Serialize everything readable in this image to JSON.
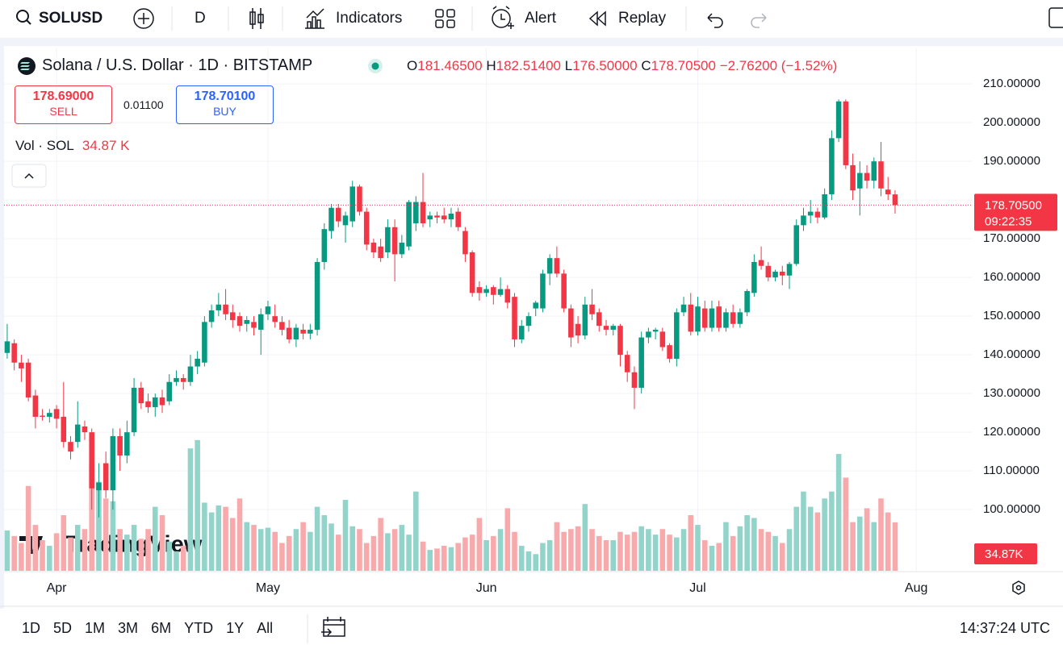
{
  "toolbar": {
    "symbol": "SOLUSD",
    "interval": "D",
    "indicators": "Indicators",
    "alert": "Alert",
    "replay": "Replay"
  },
  "legend": {
    "title": "Solana / U.S. Dollar · 1D · BITSTAMP",
    "o": "O",
    "o_value": "181.46500",
    "h": "H",
    "h_value": "182.51400",
    "l": "L",
    "l_value": "176.50000",
    "c": "C",
    "c_value": "178.70500",
    "change": "−2.76200 (−1.52%)",
    "volume_title": "Vol · SOL",
    "volume_value": "34.87 K"
  },
  "trade": {
    "sell_price": "178.69000",
    "sell": "SELL",
    "spread": "0.01100",
    "buy_price": "178.70100",
    "buy": "BUY"
  },
  "watermark": "TradingView",
  "bottom_bar": {
    "ranges": [
      "1D",
      "5D",
      "1M",
      "3M",
      "6M",
      "YTD",
      "1Y",
      "All"
    ],
    "clock": "14:37:24 UTC"
  },
  "chart_data": {
    "type": "candlestick",
    "up_color": "#089981",
    "down_color": "#f23645",
    "volume_up_color": "#92d3ca",
    "volume_down_color": "#f8a9ac",
    "xlim": [
      -0.45,
      137.0
    ],
    "xticks": [
      {
        "value": 7,
        "label": "Apr"
      },
      {
        "value": 37,
        "label": "May"
      },
      {
        "value": 68,
        "label": "Jun"
      },
      {
        "value": 98,
        "label": "Jul"
      },
      {
        "value": 129,
        "label": "Aug"
      }
    ],
    "ylim": [
      84.2,
      219.2
    ],
    "yticks": [
      {
        "value": 100,
        "label": "100.00000"
      },
      {
        "value": 110,
        "label": "110.00000"
      },
      {
        "value": 120,
        "label": "120.00000"
      },
      {
        "value": 130,
        "label": "130.00000"
      },
      {
        "value": 140,
        "label": "140.00000"
      },
      {
        "value": 150,
        "label": "150.00000"
      },
      {
        "value": 160,
        "label": "160.00000"
      },
      {
        "value": 170,
        "label": "170.00000"
      },
      {
        "value": 180,
        "label": "180.00000"
      },
      {
        "value": 190,
        "label": "190.00000"
      },
      {
        "value": 200,
        "label": "200.00000"
      },
      {
        "value": 210,
        "label": "210.00000"
      }
    ],
    "grid": true,
    "price_label": "178.70500",
    "countdown": "09:22:35",
    "volume_label": "34.87K",
    "volume_ylim": [
      0,
      200
    ],
    "ohlc": [
      [
        140.5,
        148,
        139,
        143.5
      ],
      [
        143,
        144,
        136,
        138
      ],
      [
        138,
        140,
        133,
        136.5
      ],
      [
        138,
        139,
        128,
        129
      ],
      [
        129.5,
        131,
        121,
        124
      ],
      [
        124.3,
        126,
        123,
        124
      ],
      [
        124,
        126,
        122.5,
        125
      ],
      [
        126,
        127,
        121,
        123.5
      ],
      [
        124,
        133,
        116,
        117.5
      ],
      [
        117.5,
        119,
        113,
        115
      ],
      [
        117.5,
        128,
        116,
        122
      ],
      [
        121.5,
        123,
        118,
        120
      ],
      [
        120,
        121,
        100,
        105.5
      ],
      [
        105,
        112,
        98,
        107
      ],
      [
        112,
        115,
        103,
        105
      ],
      [
        105,
        121,
        100,
        119
      ],
      [
        119,
        121,
        110,
        114
      ],
      [
        114,
        123,
        112,
        120
      ],
      [
        120,
        134,
        119,
        131.5
      ],
      [
        131.5,
        133,
        126,
        127.5
      ],
      [
        128,
        130,
        125,
        126.5
      ],
      [
        126.5,
        130,
        124,
        129
      ],
      [
        129,
        131,
        125,
        127
      ],
      [
        128,
        135,
        127,
        133
      ],
      [
        133,
        136,
        132,
        134
      ],
      [
        134,
        135,
        131,
        133
      ],
      [
        133,
        140,
        132,
        137
      ],
      [
        137,
        141,
        135,
        139
      ],
      [
        138,
        150,
        137,
        148.5
      ],
      [
        148.5,
        153,
        147,
        151.5
      ],
      [
        151.5,
        156,
        150,
        153
      ],
      [
        153,
        157,
        149,
        150.5
      ],
      [
        151,
        153,
        147,
        149
      ],
      [
        150,
        151,
        146,
        147.5
      ],
      [
        148,
        150,
        146,
        149
      ],
      [
        148.5,
        150,
        145,
        147
      ],
      [
        146.5,
        152,
        140,
        150.5
      ],
      [
        150.5,
        154,
        149,
        152.5
      ],
      [
        150,
        153,
        147,
        148.5
      ],
      [
        148.5,
        150,
        145,
        146.5
      ],
      [
        147,
        149,
        143,
        144
      ],
      [
        144,
        148,
        142,
        147
      ],
      [
        146.5,
        148,
        144,
        145.5
      ],
      [
        145.5,
        148,
        144,
        146.5
      ],
      [
        146.5,
        165,
        145,
        164
      ],
      [
        164,
        174,
        162,
        172.5
      ],
      [
        172,
        179,
        170,
        178
      ],
      [
        178,
        179,
        173,
        174.5
      ],
      [
        173.5,
        177,
        169,
        176
      ],
      [
        174.5,
        185,
        173,
        183.5
      ],
      [
        183.5,
        184,
        176,
        177
      ],
      [
        177,
        178,
        167,
        168.5
      ],
      [
        169,
        170,
        165,
        166.5
      ],
      [
        168,
        170,
        164,
        165
      ],
      [
        166.5,
        175,
        165,
        173
      ],
      [
        173,
        175,
        159,
        166
      ],
      [
        166,
        171,
        165,
        169
      ],
      [
        168,
        180,
        167,
        179.5
      ],
      [
        174,
        181,
        172,
        179.5
      ],
      [
        179.5,
        187,
        173,
        174
      ],
      [
        175,
        177,
        173,
        176
      ],
      [
        176,
        177,
        174,
        175.5
      ],
      [
        176,
        178,
        174,
        175
      ],
      [
        175,
        178,
        173,
        176.5
      ],
      [
        177,
        178,
        172,
        173
      ],
      [
        172,
        173,
        164,
        166
      ],
      [
        166.5,
        167,
        155,
        156
      ],
      [
        157.5,
        159,
        154,
        156
      ],
      [
        156,
        158,
        155,
        157
      ],
      [
        157.5,
        158,
        153,
        155.5
      ],
      [
        155.5,
        160,
        155,
        157
      ],
      [
        157,
        158,
        152,
        153.5
      ],
      [
        155,
        156,
        142,
        144
      ],
      [
        144,
        149,
        143,
        147.5
      ],
      [
        147.5,
        151,
        146,
        150
      ],
      [
        152,
        154,
        150,
        153.5
      ],
      [
        152,
        162,
        151,
        161
      ],
      [
        161,
        166,
        158,
        165
      ],
      [
        165,
        168,
        160,
        161
      ],
      [
        161,
        162,
        151,
        152
      ],
      [
        152,
        153,
        142,
        144.5
      ],
      [
        148,
        150,
        143,
        145
      ],
      [
        145,
        155,
        144,
        153
      ],
      [
        153,
        157,
        149,
        150.5
      ],
      [
        151,
        152,
        146,
        147.5
      ],
      [
        147.5,
        149,
        145,
        146.5
      ],
      [
        146.5,
        148,
        145,
        147.5
      ],
      [
        147.5,
        148,
        137,
        140
      ],
      [
        140,
        141,
        133,
        135.5
      ],
      [
        135.5,
        137,
        126,
        131.5
      ],
      [
        131.5,
        146,
        130,
        144.5
      ],
      [
        144.5,
        147,
        143,
        146
      ],
      [
        146,
        147,
        144,
        146.5
      ],
      [
        146,
        147,
        141,
        142
      ],
      [
        142.5,
        143,
        138,
        139
      ],
      [
        139,
        152,
        137,
        151
      ],
      [
        151,
        155,
        150,
        153
      ],
      [
        153,
        156,
        145,
        146
      ],
      [
        146,
        155,
        145,
        152.5
      ],
      [
        152,
        154,
        146,
        147
      ],
      [
        147,
        154,
        146,
        152
      ],
      [
        152.5,
        154,
        146,
        147
      ],
      [
        147,
        152,
        146,
        151
      ],
      [
        151,
        153,
        147,
        148
      ],
      [
        148,
        152,
        147,
        151
      ],
      [
        151,
        157,
        150,
        156.5
      ],
      [
        156,
        166,
        155,
        164
      ],
      [
        164.5,
        168,
        162,
        163
      ],
      [
        163,
        164,
        159,
        160
      ],
      [
        160,
        162,
        159,
        161.5
      ],
      [
        161.5,
        163,
        158,
        160.5
      ],
      [
        160.5,
        164,
        157,
        163.5
      ],
      [
        163.5,
        175,
        163,
        173.5
      ],
      [
        173.5,
        178,
        172,
        176
      ],
      [
        176,
        180,
        174,
        177
      ],
      [
        177,
        178,
        174,
        175.5
      ],
      [
        175.5,
        183,
        175,
        181.5
      ],
      [
        181.5,
        198,
        180,
        196
      ],
      [
        196,
        206,
        195,
        205.5
      ],
      [
        205.5,
        206,
        188,
        189
      ],
      [
        189,
        192,
        180,
        182.5
      ],
      [
        183,
        190,
        176,
        187
      ],
      [
        187,
        189,
        183,
        185
      ],
      [
        185,
        191,
        183,
        190
      ],
      [
        190,
        195,
        181,
        183
      ],
      [
        182.7,
        186,
        180,
        181.5
      ],
      [
        181.465,
        182.514,
        176.5,
        178.705
      ]
    ],
    "volume": [
      29,
      25,
      20,
      61,
      33,
      22,
      18,
      27,
      40,
      24,
      33,
      30,
      78,
      64,
      52,
      50,
      30,
      26,
      33,
      23,
      30,
      46,
      40,
      21,
      14,
      18,
      88,
      94,
      49,
      42,
      47,
      46,
      38,
      52,
      35,
      33,
      30,
      31,
      28,
      20,
      25,
      30,
      35,
      28,
      46,
      40,
      34,
      26,
      51,
      32,
      30,
      20,
      25,
      38,
      27,
      30,
      33,
      26,
      57,
      21,
      15,
      16,
      18,
      17,
      20,
      24,
      26,
      38,
      22,
      25,
      30,
      45,
      28,
      18,
      14,
      12,
      20,
      22,
      35,
      28,
      30,
      32,
      48,
      30,
      25,
      22,
      22,
      28,
      26,
      28,
      32,
      30,
      26,
      30,
      26,
      24,
      30,
      40,
      33,
      22,
      18,
      20,
      35,
      25,
      32,
      40,
      38,
      30,
      28,
      25,
      20,
      30,
      46,
      57,
      46,
      42,
      52,
      57,
      84,
      67,
      35,
      39,
      45,
      35,
      52,
      42,
      34.87
    ]
  }
}
